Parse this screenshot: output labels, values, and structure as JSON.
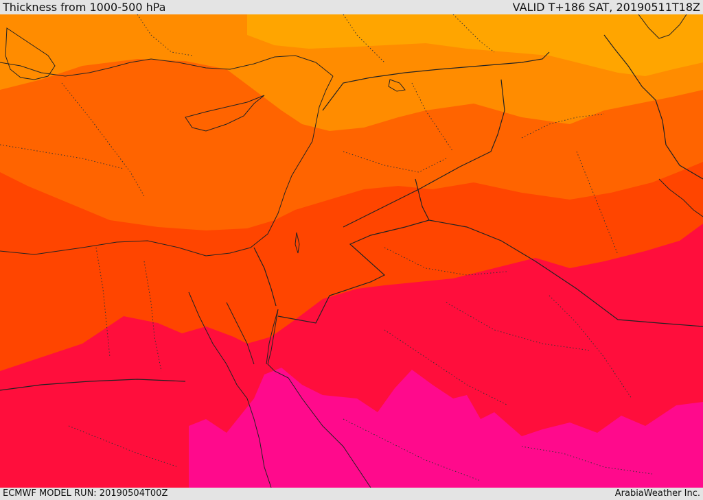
{
  "header": {
    "title": "Thickness from 1000-500 hPa",
    "valid": "VALID T+186 SAT, 20190511T18Z"
  },
  "footer": {
    "model_run": "ECMWF MODEL RUN: 20190504T00Z",
    "credit": "ArabiaWeather Inc."
  },
  "map": {
    "colors": {
      "band_1": "#ffa500",
      "band_2": "#ff8c00",
      "band_3": "#ff6400",
      "band_4": "#ff4500",
      "band_5": "#ff0e3c",
      "band_6": "#ff0a8c",
      "coastline": "#222222",
      "border": "#222222",
      "province": "#333333"
    }
  }
}
